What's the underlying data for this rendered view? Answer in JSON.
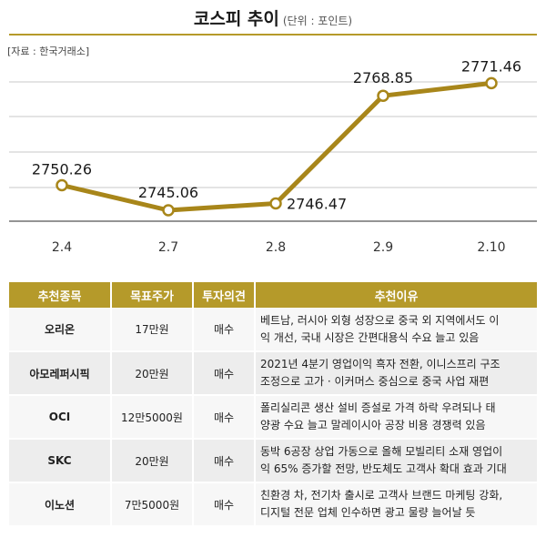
{
  "title": "코스피 추이",
  "unit": "(단위 : 포인트)",
  "source": "[자료 : 한국거래소]",
  "colors": {
    "accent": "#b59a2a",
    "line": "#a8861a",
    "table_header": "#b59a2a"
  },
  "chart_data": {
    "type": "line",
    "title": "코스피 추이",
    "xlabel": "",
    "ylabel": "",
    "categories": [
      "2.4",
      "2.7",
      "2.8",
      "2.9",
      "2.10"
    ],
    "series": [
      {
        "values": [
          2750.26,
          2745.06,
          2746.47,
          2768.85,
          2771.46
        ],
        "labels": [
          "2750.26",
          "2745.06",
          "2746.47",
          "2768.85",
          "2771.46"
        ]
      }
    ],
    "grid": true
  },
  "table": {
    "headers": [
      "추천종목",
      "목표주가",
      "투자의견",
      "추천이유"
    ],
    "rows": [
      {
        "name": "오리온",
        "target": "17만원",
        "opinion": "매수",
        "reason": [
          "베트남, 러시아 외형 성장으로 중국 외 지역에서도 이",
          "익 개선, 국내 시장은 간편대용식 수요 늘고 있음"
        ]
      },
      {
        "name": "아모레퍼시픽",
        "target": "20만원",
        "opinion": "매수",
        "reason": [
          "2021년 4분기 영업이익 흑자 전환, 이니스프리 구조",
          "조정으로 고가 · 이커머스 중심으로 중국 사업 재편"
        ]
      },
      {
        "name": "OCI",
        "target": "12만5000원",
        "opinion": "매수",
        "reason": [
          "폴리실리콘 생산 설비 증설로 가격 하락 우려되나 태",
          "양광 수요 늘고 말레이시아 공장 비용 경쟁력 있음"
        ]
      },
      {
        "name": "SKC",
        "target": "20만원",
        "opinion": "매수",
        "reason": [
          "동박 6공장 상업 가동으로 올해 모빌리티 소재 영업이",
          "익 65% 증가할 전망, 반도체도 고객사 확대 효과 기대"
        ]
      },
      {
        "name": "이노션",
        "target": "7만5000원",
        "opinion": "매수",
        "reason": [
          "친환경 차, 전기차 출시로 고객사 브랜드 마케팅 강화,",
          "디지털 전문 업체 인수하면 광고 물량 늘어날 듯"
        ]
      }
    ]
  }
}
